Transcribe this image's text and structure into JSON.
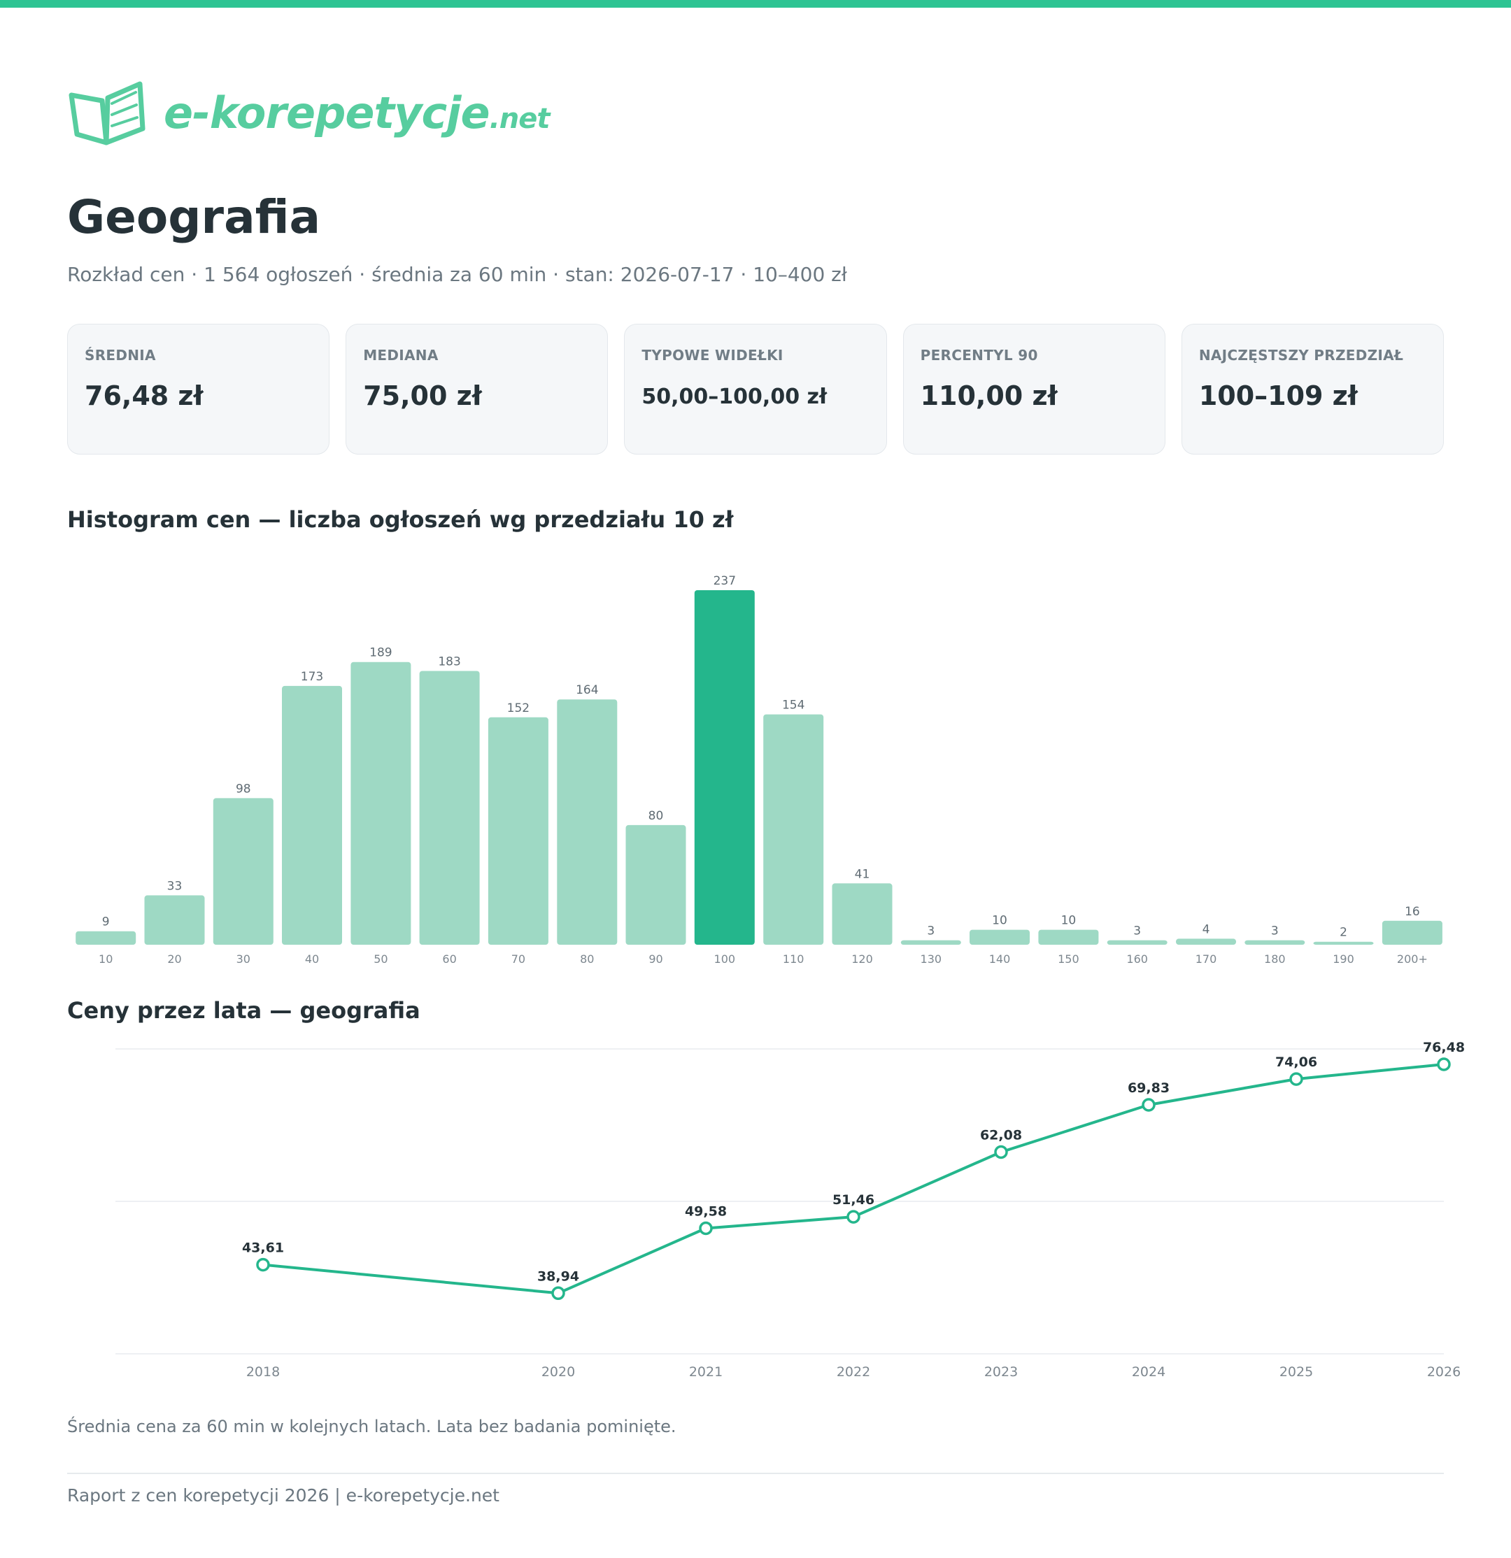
{
  "header": {
    "accent_color": "#2ec493",
    "logo_icon": "open-book-icon",
    "logo_text": "e-korepetycje",
    "logo_tld": ".net"
  },
  "page": {
    "title": "Geografia",
    "subtitle": "Rozkład cen · 1 564 ogłoszeń · średnia za 60 min · stan: 2026-07-17 · 10–400 zł"
  },
  "stats": [
    {
      "label": "ŚREDNIA",
      "value": "76,48 zł"
    },
    {
      "label": "MEDIANA",
      "value": "75,00 zł"
    },
    {
      "label": "TYPOWE WIDEŁKI",
      "value": "50,00–100,00 zł"
    },
    {
      "label": "PERCENTYL 90",
      "value": "110,00 zł"
    },
    {
      "label": "NAJCZĘSTSZY PRZEDZIAŁ",
      "value": "100–109 zł"
    }
  ],
  "histogram_title": "Histogram cen — liczba ogłoszeń wg przedziału 10 zł",
  "line_title": "Ceny przez lata — geografia",
  "caption": "Średnia cena za 60 min w kolejnych latach. Lata bez badania pominięte.",
  "footer": "Raport z cen korepetycji 2026 | e-korepetycje.net",
  "chart_data": [
    {
      "type": "bar",
      "title": "Histogram cen — liczba ogłoszeń wg przedziału 10 zł",
      "categories": [
        "10",
        "20",
        "30",
        "40",
        "50",
        "60",
        "70",
        "80",
        "90",
        "100",
        "110",
        "120",
        "130",
        "140",
        "150",
        "160",
        "170",
        "180",
        "190",
        "200+"
      ],
      "values": [
        9,
        33,
        98,
        173,
        189,
        183,
        152,
        164,
        80,
        237,
        154,
        41,
        3,
        10,
        10,
        3,
        4,
        3,
        2,
        16
      ],
      "highlight_category": "100",
      "colors": {
        "bar": "#9ed9c4",
        "highlight": "#24b68c"
      },
      "grid": false,
      "legend": "none"
    },
    {
      "type": "line",
      "title": "Ceny przez lata — geografia",
      "x": [
        "2018",
        "2020",
        "2021",
        "2022",
        "2023",
        "2024",
        "2025",
        "2026"
      ],
      "values": [
        43.61,
        38.94,
        49.58,
        51.46,
        62.08,
        69.83,
        74.06,
        76.48
      ],
      "labels": [
        "43,61",
        "38,94",
        "49,58",
        "51,46",
        "62,08",
        "69,83",
        "74,06",
        "76,48"
      ],
      "ylim": [
        29,
        79
      ],
      "colors": {
        "line": "#24b68c"
      },
      "grid": true,
      "legend": "none"
    }
  ]
}
